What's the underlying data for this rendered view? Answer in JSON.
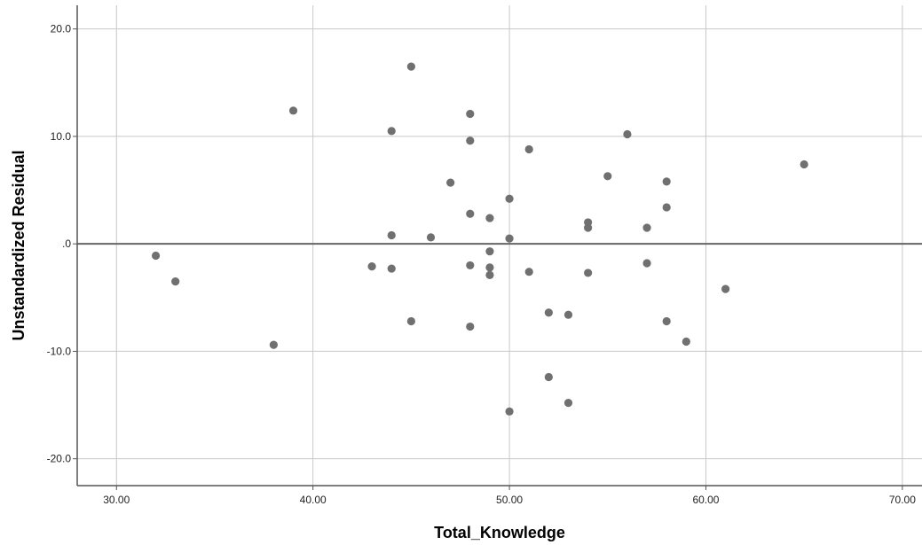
{
  "chart_data": {
    "type": "scatter",
    "title": "",
    "xlabel": "Total_Knowledge",
    "ylabel": "Unstandardized Residual",
    "xlim": [
      28,
      71
    ],
    "ylim": [
      -22.5,
      22.2
    ],
    "x_ticks": [
      30,
      40,
      50,
      60,
      70
    ],
    "x_tick_labels": [
      "30.00",
      "40.00",
      "50.00",
      "60.00",
      "70.00"
    ],
    "y_ticks": [
      20,
      10,
      0,
      -10,
      -20
    ],
    "y_tick_labels": [
      "20.0",
      "10.0",
      ".0",
      "-10.0",
      "-20.0"
    ],
    "grid": true,
    "reference_line_y": 0,
    "colors": {
      "point": "#707070",
      "grid": "#c8c8c8",
      "axis": "#555555",
      "reference": "#666666"
    },
    "points": [
      {
        "x": 32,
        "y": -1.1
      },
      {
        "x": 33,
        "y": -3.5
      },
      {
        "x": 38,
        "y": -9.4
      },
      {
        "x": 39,
        "y": 12.4
      },
      {
        "x": 43,
        "y": -2.1
      },
      {
        "x": 44,
        "y": 10.5
      },
      {
        "x": 44,
        "y": 0.8
      },
      {
        "x": 44,
        "y": -2.3
      },
      {
        "x": 45,
        "y": 16.5
      },
      {
        "x": 45,
        "y": -7.2
      },
      {
        "x": 46,
        "y": 0.6
      },
      {
        "x": 47,
        "y": 5.7
      },
      {
        "x": 48,
        "y": 12.1
      },
      {
        "x": 48,
        "y": 9.6
      },
      {
        "x": 48,
        "y": 2.8
      },
      {
        "x": 48,
        "y": -2.0
      },
      {
        "x": 48,
        "y": -7.7
      },
      {
        "x": 49,
        "y": 2.4
      },
      {
        "x": 49,
        "y": -0.7
      },
      {
        "x": 49,
        "y": -2.2
      },
      {
        "x": 49,
        "y": -2.9
      },
      {
        "x": 50,
        "y": 4.2
      },
      {
        "x": 50,
        "y": 0.5
      },
      {
        "x": 50,
        "y": -15.6
      },
      {
        "x": 51,
        "y": 8.8
      },
      {
        "x": 51,
        "y": -2.6
      },
      {
        "x": 52,
        "y": -6.4
      },
      {
        "x": 52,
        "y": -12.4
      },
      {
        "x": 53,
        "y": -6.6
      },
      {
        "x": 53,
        "y": -14.8
      },
      {
        "x": 54,
        "y": 2.0
      },
      {
        "x": 54,
        "y": 1.5
      },
      {
        "x": 54,
        "y": -2.7
      },
      {
        "x": 55,
        "y": 6.3
      },
      {
        "x": 56,
        "y": 10.2
      },
      {
        "x": 57,
        "y": 1.5
      },
      {
        "x": 57,
        "y": -1.8
      },
      {
        "x": 58,
        "y": 5.8
      },
      {
        "x": 58,
        "y": 3.4
      },
      {
        "x": 58,
        "y": -7.2
      },
      {
        "x": 59,
        "y": -9.1
      },
      {
        "x": 61,
        "y": -4.2
      },
      {
        "x": 65,
        "y": 7.4
      }
    ]
  }
}
